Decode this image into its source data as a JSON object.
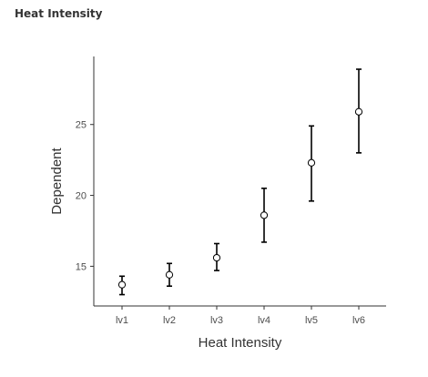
{
  "panel": {
    "title": "Heat Intensity"
  },
  "chart_data": {
    "type": "scatter",
    "title": "",
    "xlabel": "Heat Intensity",
    "ylabel": "Dependent",
    "categories": [
      "lv1",
      "lv2",
      "lv3",
      "lv4",
      "lv5",
      "lv6"
    ],
    "series": [
      {
        "values": [
          13.7,
          14.4,
          15.6,
          18.6,
          22.3,
          25.9
        ],
        "lower": [
          13.0,
          13.6,
          14.7,
          16.7,
          19.6,
          23.0
        ],
        "upper": [
          14.3,
          15.2,
          16.6,
          20.5,
          24.9,
          28.9
        ]
      }
    ],
    "yticks": [
      15,
      20,
      25
    ],
    "ylim": [
      12.2,
      29.8
    ],
    "grid": false,
    "legend": "none",
    "colors": {
      "marker_fill": "#ffffff",
      "marker_stroke": "#000000",
      "errorbar": "#000000",
      "axis": "#333333"
    }
  }
}
